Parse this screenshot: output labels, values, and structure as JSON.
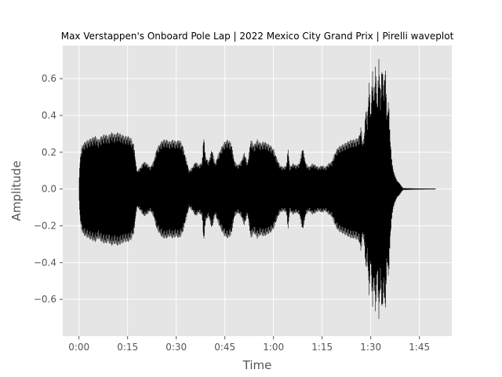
{
  "chart_data": {
    "type": "line",
    "title": "Max Verstappen's Onboard Pole Lap | 2022 Mexico City Grand Prix | Pirelli waveplot",
    "xlabel": "Time",
    "ylabel": "Amplitude",
    "x_unit": "seconds",
    "xlim": [
      -5,
      115
    ],
    "ylim": [
      -0.8,
      0.78
    ],
    "x_ticks": [
      {
        "value": 0,
        "label": "0:00"
      },
      {
        "value": 15,
        "label": "0:15"
      },
      {
        "value": 30,
        "label": "0:30"
      },
      {
        "value": 45,
        "label": "0:45"
      },
      {
        "value": 60,
        "label": "1:00"
      },
      {
        "value": 75,
        "label": "1:15"
      },
      {
        "value": 90,
        "label": "1:30"
      },
      {
        "value": 105,
        "label": "1:45"
      }
    ],
    "y_ticks": [
      {
        "value": -0.6,
        "label": "−0.6"
      },
      {
        "value": -0.4,
        "label": "−0.4"
      },
      {
        "value": -0.2,
        "label": "−0.2"
      },
      {
        "value": 0.0,
        "label": "0.0"
      },
      {
        "value": 0.2,
        "label": "0.2"
      },
      {
        "value": 0.4,
        "label": "0.4"
      },
      {
        "value": 0.6,
        "label": "0.6"
      }
    ],
    "grid": true,
    "colors": {
      "background": "#e5e5e5",
      "grid": "#ffffff",
      "line": "#000000"
    },
    "series": [
      {
        "envelope": [
          [
            0.0,
            0.05
          ],
          [
            0.4,
            0.18
          ],
          [
            1.0,
            0.24
          ],
          [
            2.0,
            0.26
          ],
          [
            3.0,
            0.27
          ],
          [
            4.0,
            0.28
          ],
          [
            5.0,
            0.29
          ],
          [
            6.0,
            0.27
          ],
          [
            7.0,
            0.29
          ],
          [
            8.0,
            0.3
          ],
          [
            9.0,
            0.29
          ],
          [
            10.0,
            0.31
          ],
          [
            11.0,
            0.3
          ],
          [
            12.0,
            0.31
          ],
          [
            13.0,
            0.3
          ],
          [
            14.0,
            0.29
          ],
          [
            15.0,
            0.29
          ],
          [
            16.0,
            0.28
          ],
          [
            17.0,
            0.24
          ],
          [
            17.5,
            0.15
          ],
          [
            18.0,
            0.1
          ],
          [
            19.0,
            0.12
          ],
          [
            20.0,
            0.15
          ],
          [
            21.0,
            0.14
          ],
          [
            22.0,
            0.12
          ],
          [
            23.0,
            0.15
          ],
          [
            24.0,
            0.22
          ],
          [
            25.0,
            0.25
          ],
          [
            26.0,
            0.27
          ],
          [
            27.0,
            0.27
          ],
          [
            28.0,
            0.26
          ],
          [
            29.0,
            0.27
          ],
          [
            30.0,
            0.26
          ],
          [
            31.0,
            0.27
          ],
          [
            32.0,
            0.24
          ],
          [
            33.0,
            0.17
          ],
          [
            34.0,
            0.1
          ],
          [
            35.0,
            0.12
          ],
          [
            36.0,
            0.15
          ],
          [
            37.0,
            0.13
          ],
          [
            38.0,
            0.15
          ],
          [
            38.5,
            0.3
          ],
          [
            39.0,
            0.18
          ],
          [
            40.0,
            0.15
          ],
          [
            41.0,
            0.22
          ],
          [
            42.0,
            0.14
          ],
          [
            43.0,
            0.19
          ],
          [
            44.0,
            0.23
          ],
          [
            45.0,
            0.26
          ],
          [
            46.0,
            0.27
          ],
          [
            47.0,
            0.25
          ],
          [
            48.0,
            0.15
          ],
          [
            49.0,
            0.13
          ],
          [
            50.0,
            0.15
          ],
          [
            51.0,
            0.2
          ],
          [
            52.0,
            0.14
          ],
          [
            53.0,
            0.27
          ],
          [
            54.0,
            0.24
          ],
          [
            55.0,
            0.27
          ],
          [
            56.0,
            0.25
          ],
          [
            57.0,
            0.26
          ],
          [
            58.0,
            0.25
          ],
          [
            59.0,
            0.24
          ],
          [
            60.0,
            0.22
          ],
          [
            61.0,
            0.17
          ],
          [
            62.0,
            0.13
          ],
          [
            63.0,
            0.12
          ],
          [
            64.0,
            0.13
          ],
          [
            64.5,
            0.23
          ],
          [
            65.0,
            0.12
          ],
          [
            66.0,
            0.14
          ],
          [
            67.0,
            0.13
          ],
          [
            68.0,
            0.14
          ],
          [
            69.0,
            0.23
          ],
          [
            70.0,
            0.14
          ],
          [
            71.0,
            0.12
          ],
          [
            72.0,
            0.14
          ],
          [
            73.0,
            0.13
          ],
          [
            74.0,
            0.12
          ],
          [
            75.0,
            0.13
          ],
          [
            76.0,
            0.12
          ],
          [
            77.0,
            0.14
          ],
          [
            78.0,
            0.15
          ],
          [
            79.0,
            0.2
          ],
          [
            80.0,
            0.23
          ],
          [
            81.0,
            0.24
          ],
          [
            82.0,
            0.25
          ],
          [
            83.0,
            0.26
          ],
          [
            84.0,
            0.27
          ],
          [
            85.0,
            0.27
          ],
          [
            86.0,
            0.28
          ],
          [
            86.5,
            0.29
          ],
          [
            87.0,
            0.35
          ],
          [
            87.5,
            0.25
          ],
          [
            88.0,
            0.3
          ],
          [
            88.5,
            0.45
          ],
          [
            89.0,
            0.38
          ],
          [
            89.5,
            0.6
          ],
          [
            90.0,
            0.4
          ],
          [
            90.5,
            0.66
          ],
          [
            91.0,
            0.5
          ],
          [
            91.5,
            0.7
          ],
          [
            92.0,
            0.45
          ],
          [
            92.5,
            0.72
          ],
          [
            93.0,
            0.5
          ],
          [
            93.5,
            0.7
          ],
          [
            94.0,
            0.55
          ],
          [
            94.5,
            0.69
          ],
          [
            95.0,
            0.4
          ],
          [
            95.5,
            0.5
          ],
          [
            96.0,
            0.28
          ],
          [
            96.5,
            0.16
          ],
          [
            97.0,
            0.1
          ],
          [
            98.0,
            0.05
          ],
          [
            99.0,
            0.03
          ],
          [
            99.5,
            0.015
          ],
          [
            100.0,
            0.005
          ],
          [
            110.0,
            0.0
          ]
        ]
      }
    ]
  }
}
